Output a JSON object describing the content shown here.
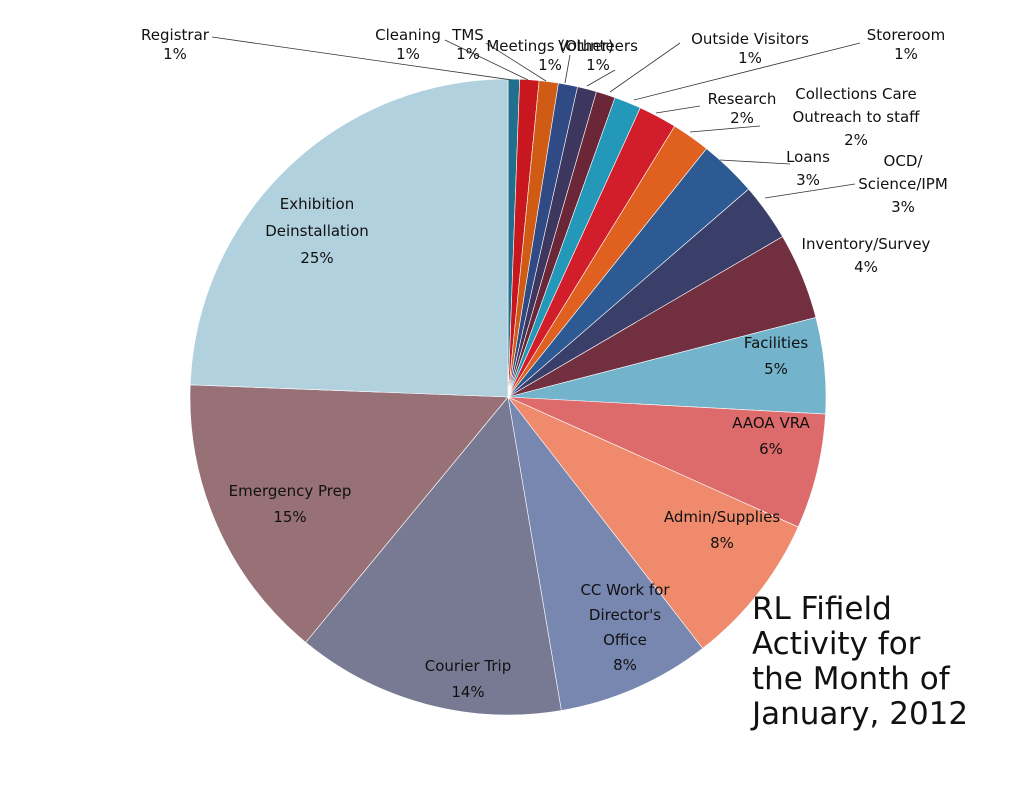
{
  "chart_data": {
    "type": "pie",
    "title_lines": [
      "RL Fifield",
      "Activity for",
      "the Month of",
      "January, 2012"
    ],
    "slices": [
      {
        "name": "Registrar",
        "value": 0.6,
        "label": "1%",
        "color": "#206f8c"
      },
      {
        "name": "Cleaning",
        "value": 1,
        "label": "1%",
        "color": "#c8171e"
      },
      {
        "name": "TMS",
        "value": 1,
        "label": "1%",
        "color": "#d05b15"
      },
      {
        "name": "Meetings (Other)",
        "value": 1,
        "label": "1%",
        "color": "#2f4a85"
      },
      {
        "name": "Volunteers",
        "value": 1,
        "label": "1%",
        "color": "#3d365e"
      },
      {
        "name": "Outside Visitors",
        "value": 1,
        "label": "1%",
        "color": "#6b2738"
      },
      {
        "name": "Storeroom",
        "value": 1.4,
        "label": "1%",
        "color": "#2498b8"
      },
      {
        "name": "Research",
        "value": 2,
        "label": "2%",
        "color": "#d21e2a"
      },
      {
        "name": "Collections Care Outreach to staff",
        "value": 2,
        "label": "2%",
        "color": "#e06020"
      },
      {
        "name": "Loans",
        "value": 3,
        "label": "3%",
        "color": "#2e5a93"
      },
      {
        "name": "OCD/ Science/IPM",
        "value": 3,
        "label": "3%",
        "color": "#3a3f6a"
      },
      {
        "name": "Inventory/Survey",
        "value": 4.5,
        "label": "4%",
        "color": "#722f3f"
      },
      {
        "name": "Facilities",
        "value": 5,
        "label": "5%",
        "color": "#73b3cb"
      },
      {
        "name": "AAOA VRA",
        "value": 6,
        "label": "6%",
        "color": "#de6b6b"
      },
      {
        "name": "Admin/Supplies",
        "value": 8,
        "label": "8%",
        "color": "#ef8a6c"
      },
      {
        "name": "CC Work for Director's Office",
        "value": 8,
        "label": "8%",
        "color": "#7787b0"
      },
      {
        "name": "Courier Trip",
        "value": 14,
        "label": "14%",
        "color": "#787a94"
      },
      {
        "name": "Emergency Prep",
        "value": 15,
        "label": "15%",
        "color": "#977176"
      },
      {
        "name": "Exhibition Deinstallation",
        "value": 25,
        "label": "25%",
        "color": "#b2d1de"
      }
    ],
    "labels": [
      {
        "text": [
          "Registrar",
          "1%"
        ]
      },
      {
        "text": [
          "Cleaning",
          "1%"
        ]
      },
      {
        "text": [
          "TMS",
          "1%"
        ]
      },
      {
        "text": [
          "Meetings (Other)",
          "1%"
        ]
      },
      {
        "text": [
          "Volunteers",
          "1%"
        ]
      },
      {
        "text": [
          "Outside Visitors",
          "1%"
        ]
      },
      {
        "text": [
          "Storeroom",
          "1%"
        ]
      },
      {
        "text": [
          "Research",
          "2%"
        ]
      },
      {
        "text": [
          "Collections Care",
          "Outreach to  staff",
          "2%"
        ]
      },
      {
        "text": [
          "Loans",
          "3%"
        ]
      },
      {
        "text": [
          "OCD/",
          "Science/IPM",
          "3%"
        ]
      },
      {
        "text": [
          "Inventory/Survey",
          "4%"
        ]
      },
      {
        "text": [
          "Facilities",
          "5%"
        ]
      },
      {
        "text": [
          "AAOA VRA",
          "6%"
        ]
      },
      {
        "text": [
          "Admin/Supplies",
          "8%"
        ]
      },
      {
        "text": [
          "CC Work for",
          "Director's",
          "Office",
          "8%"
        ]
      },
      {
        "text": [
          "Courier Trip",
          "14%"
        ]
      },
      {
        "text": [
          "Emergency Prep",
          "15%"
        ]
      },
      {
        "text": [
          "Exhibition",
          "Deinstallation",
          "25%"
        ]
      }
    ]
  }
}
